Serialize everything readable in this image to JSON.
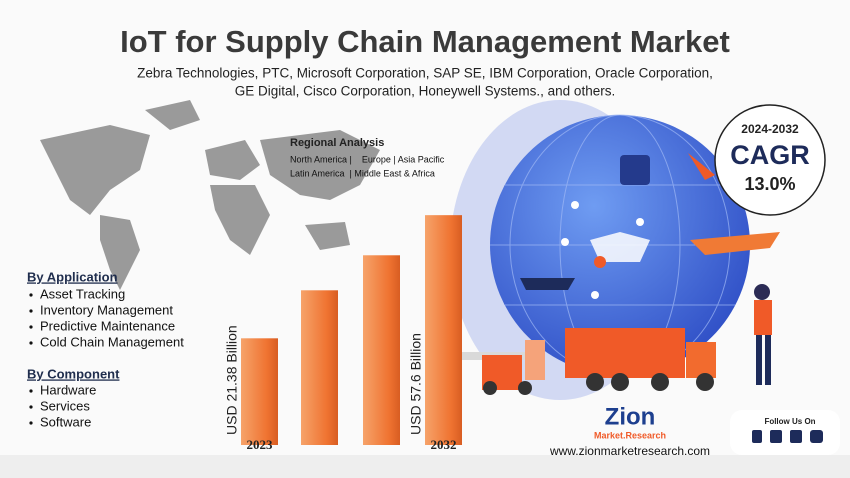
{
  "header": {
    "title": "IoT for Supply Chain Management Market",
    "subtitle": [
      "Zebra Technologies, PTC, Microsoft Corporation, SAP SE, IBM Corporation, Oracle Corporation,",
      "GE Digital, Cisco Corporation, Honeywell Systems., and others."
    ]
  },
  "regional": {
    "title": "Regional Analysis",
    "lines": [
      "North America |    Europe | Asia Pacific",
      "Latin America  | Middle East & Africa"
    ]
  },
  "cagr": {
    "period": "2024-2032",
    "label": "CAGR",
    "value": "13.0%"
  },
  "application": {
    "title": "By Application",
    "items": [
      "Asset Tracking",
      "Inventory Management",
      "Predictive Maintenance",
      "Cold Chain Management"
    ]
  },
  "component": {
    "title": "By Component",
    "items": [
      "Hardware",
      "Services",
      "Software"
    ]
  },
  "chart_data": {
    "type": "bar",
    "categories": [
      "2023",
      null,
      null,
      "2032"
    ],
    "values": [
      21.38,
      35.5,
      45.8,
      57.6
    ],
    "value_labels": [
      "USD 21.38 Billion",
      null,
      null,
      "USD 57.6 Billion"
    ],
    "color": "#f07a35",
    "ylim": [
      -10,
      60
    ]
  },
  "logo": {
    "name": "Zion",
    "tagline": "Market.Research"
  },
  "url": "www.zionmarketresearch.com",
  "social": {
    "title": "Follow Us On"
  }
}
